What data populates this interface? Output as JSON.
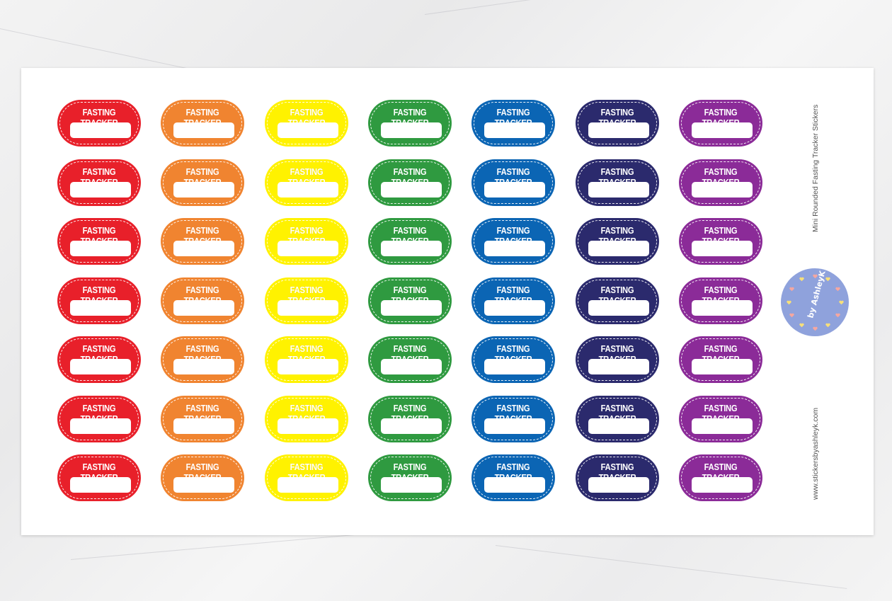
{
  "sheet": {
    "title": "Mini Rounded Fasting Tracker Stickers",
    "website": "www.stickersbyashleyk.com",
    "logo": {
      "text": "by AshleyK",
      "color": "#8fa2dc"
    }
  },
  "sticker_label": "FASTING TRACKER",
  "sticker_rows": 7,
  "sticker_colors": [
    "#e8202a",
    "#f08430",
    "#fff200",
    "#2f9a40",
    "#0b65b4",
    "#2b2a6d",
    "#8b2b98"
  ]
}
